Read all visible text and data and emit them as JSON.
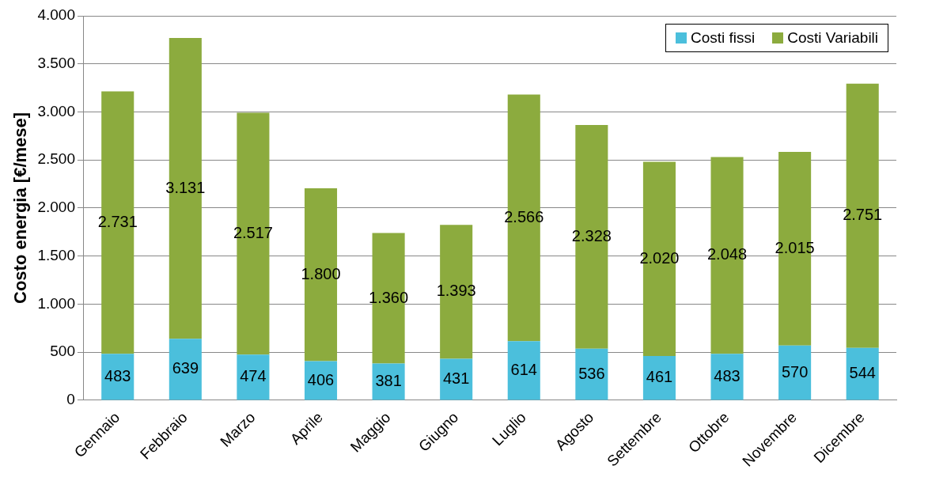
{
  "chart_data": {
    "type": "bar",
    "stacked": true,
    "ylabel": "Costo energia [€/mese]",
    "categories": [
      "Gennaio",
      "Febbraio",
      "Marzo",
      "Aprile",
      "Maggio",
      "Giugno",
      "Luglio",
      "Agosto",
      "Settembre",
      "Ottobre",
      "Novembre",
      "Dicembre"
    ],
    "series": [
      {
        "name": "Costi fissi",
        "color": "#4bbfdc",
        "values": [
          483,
          639,
          474,
          406,
          381,
          431,
          614,
          536,
          461,
          483,
          570,
          544
        ],
        "value_labels": [
          "483",
          "639",
          "474",
          "406",
          "381",
          "431",
          "614",
          "536",
          "461",
          "483",
          "570",
          "544"
        ]
      },
      {
        "name": "Costi Variabili",
        "color": "#8cab3e",
        "values": [
          2731,
          3131,
          2517,
          1800,
          1360,
          1393,
          2566,
          2328,
          2020,
          2048,
          2015,
          2751
        ],
        "value_labels": [
          "2.731",
          "3.131",
          "2.517",
          "1.800",
          "1.360",
          "1.393",
          "2.566",
          "2.328",
          "2.020",
          "2.048",
          "2.015",
          "2.751"
        ]
      }
    ],
    "ylim": [
      0,
      4000
    ],
    "yticks": [
      0,
      500,
      {
        "value": 1000,
        "label": "1.000"
      },
      {
        "value": 1500,
        "label": "1.500"
      },
      {
        "value": 2000,
        "label": "2.000"
      },
      {
        "value": 2500,
        "label": "2.500"
      },
      {
        "value": 3000,
        "label": "3.000"
      },
      {
        "value": 3500,
        "label": "3.500"
      },
      {
        "value": 4000,
        "label": "4.000"
      }
    ],
    "grid": "y",
    "legend": "top right"
  }
}
